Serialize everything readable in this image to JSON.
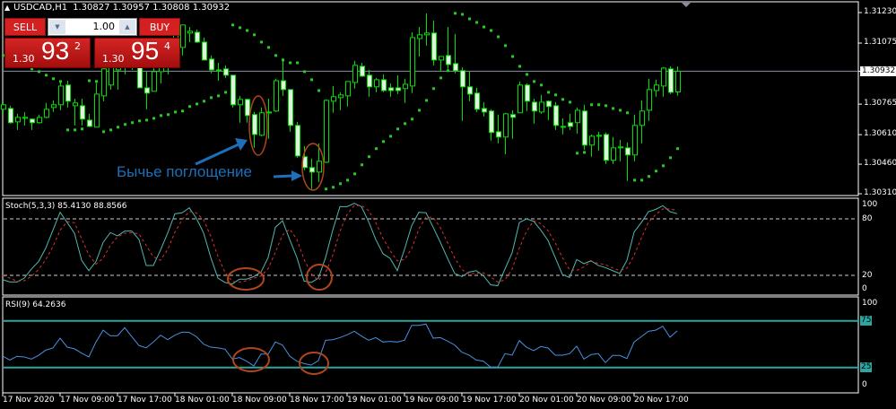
{
  "header": {
    "symbol": "USDCAD,H1",
    "ohlc": "1.30827 1.30957 1.30808 1.30932"
  },
  "trade_panel": {
    "sell_label": "SELL",
    "buy_label": "BUY",
    "lot": "1.00",
    "sell_price": {
      "prefix": "1.30",
      "big": "93",
      "sup": "2"
    },
    "buy_price": {
      "prefix": "1.30",
      "big": "95",
      "sup": "4"
    }
  },
  "annotation": {
    "text": "Бычье поглощение"
  },
  "colors": {
    "background": "#000000",
    "candle": "#00e000",
    "bear_body": "#d8f8d8",
    "sar": "#22cc22",
    "stoch_main": "#4fb8b0",
    "stoch_signal": "#e03030",
    "rsi": "#4a90e0",
    "rsi_levels": "#2fa5a0",
    "annotation": "#1c6fb8",
    "highlight": "#b0461c",
    "price_line": "#8890a0"
  },
  "chart_data": [
    {
      "type": "candlestick",
      "symbol": "USDCAD",
      "timeframe": "H1",
      "price_ticks": [
        "1.31230",
        "1.31075",
        "1.30932",
        "1.30765",
        "1.30610",
        "1.30460",
        "1.30310"
      ],
      "ylim": [
        1.3031,
        1.3123
      ],
      "current_price": "1.30932",
      "time_ticks": [
        "17 Nov 2020",
        "17 Nov 09:00",
        "17 Nov 17:00",
        "18 Nov 01:00",
        "18 Nov 09:00",
        "18 Nov 17:00",
        "19 Nov 01:00",
        "19 Nov 09:00",
        "19 Nov 17:00",
        "20 Nov 01:00",
        "20 Nov 09:00",
        "20 Nov 17:00"
      ],
      "bar_hours_start": "17 Nov 2020 00:00",
      "ohlc": [
        [
          1.30739,
          1.3078,
          1.30716,
          1.30762
        ],
        [
          1.30743,
          1.30757,
          1.30666,
          1.30671
        ],
        [
          1.30675,
          1.30716,
          1.30634,
          1.30698
        ],
        [
          1.30693,
          1.30725,
          1.30657,
          1.30698
        ],
        [
          1.30689,
          1.30693,
          1.30634,
          1.30671
        ],
        [
          1.30671,
          1.30712,
          1.30666,
          1.30698
        ],
        [
          1.30698,
          1.30771,
          1.30693,
          1.30739
        ],
        [
          1.30748,
          1.30784,
          1.30725,
          1.30762
        ],
        [
          1.30762,
          1.30884,
          1.30734,
          1.30857
        ],
        [
          1.30862,
          1.30884,
          1.30748,
          1.3078
        ],
        [
          1.30757,
          1.30793,
          1.30657,
          1.30771
        ],
        [
          1.30757,
          1.30793,
          1.30657,
          1.30689
        ],
        [
          1.30684,
          1.30716,
          1.30648,
          1.30652
        ],
        [
          1.30648,
          1.30871,
          1.30648,
          1.30816
        ],
        [
          1.30807,
          1.30975,
          1.3078,
          1.30944
        ],
        [
          1.30862,
          1.30998,
          1.30839,
          1.30953
        ],
        [
          1.30939,
          1.31044,
          1.30839,
          1.30994
        ],
        [
          1.30994,
          1.31044,
          1.30916,
          1.30975
        ],
        [
          1.30966,
          1.3103,
          1.30939,
          1.30985
        ],
        [
          1.31012,
          1.31044,
          1.30848,
          1.30848
        ],
        [
          1.30848,
          1.3093,
          1.30739,
          1.30821
        ],
        [
          1.3083,
          1.30966,
          1.3083,
          1.3093
        ],
        [
          1.3093,
          1.30998,
          1.30871,
          1.30953
        ],
        [
          1.30953,
          1.31066,
          1.30916,
          1.31021
        ],
        [
          1.31021,
          1.3118,
          1.30998,
          1.31157
        ],
        [
          1.31053,
          1.31167,
          1.31012,
          1.31167
        ],
        [
          1.31126,
          1.31157,
          1.3108,
          1.31135
        ],
        [
          1.3113,
          1.31144,
          1.31076,
          1.3108
        ],
        [
          1.3108,
          1.31103,
          1.30989,
          1.30989
        ],
        [
          1.30994,
          1.31012,
          1.30921,
          1.30939
        ],
        [
          1.30939,
          1.30975,
          1.30884,
          1.30935
        ],
        [
          1.30944,
          1.30962,
          1.30898,
          1.30912
        ],
        [
          1.30912,
          1.30912,
          1.30748,
          1.30762
        ],
        [
          1.30762,
          1.30807,
          1.30671,
          1.30789
        ],
        [
          1.30789,
          1.30793,
          1.30671,
          1.30707
        ],
        [
          1.30712,
          1.30725,
          1.30543,
          1.30611
        ],
        [
          1.30607,
          1.30748,
          1.30602,
          1.30721
        ],
        [
          1.30721,
          1.30793,
          1.30589,
          1.30725
        ],
        [
          1.3073,
          1.30894,
          1.30725,
          1.30884
        ],
        [
          1.30884,
          1.30998,
          1.30807,
          1.30839
        ],
        [
          1.30839,
          1.30839,
          1.30625,
          1.30657
        ],
        [
          1.30657,
          1.30675,
          1.30493,
          1.30502
        ],
        [
          1.30498,
          1.30552,
          1.30429,
          1.30443
        ],
        [
          1.30443,
          1.30489,
          1.30334,
          1.3042
        ],
        [
          1.3042,
          1.30566,
          1.3037,
          1.30475
        ],
        [
          1.3047,
          1.30789,
          1.30466,
          1.30784
        ],
        [
          1.3078,
          1.30857,
          1.30721,
          1.30803
        ],
        [
          1.30798,
          1.30825,
          1.30734,
          1.30812
        ],
        [
          1.30807,
          1.3088,
          1.30753,
          1.3088
        ],
        [
          1.30875,
          1.30985,
          1.30844,
          1.30962
        ],
        [
          1.30957,
          1.30975,
          1.30903,
          1.30907
        ],
        [
          1.30912,
          1.30939,
          1.30803,
          1.30853
        ],
        [
          1.30853,
          1.30898,
          1.30825,
          1.30889
        ],
        [
          1.30889,
          1.30916,
          1.30825,
          1.30834
        ],
        [
          1.30848,
          1.30871,
          1.30803,
          1.30834
        ],
        [
          1.30848,
          1.30912,
          1.30816,
          1.30834
        ],
        [
          1.30844,
          1.30894,
          1.30771,
          1.30866
        ],
        [
          1.30857,
          1.3113,
          1.30821,
          1.31103
        ],
        [
          1.31098,
          1.31157,
          1.31007,
          1.31117
        ],
        [
          1.31117,
          1.31226,
          1.31062,
          1.31126
        ],
        [
          1.31126,
          1.31189,
          1.30962,
          1.30989
        ],
        [
          1.30989,
          1.31007,
          1.3093,
          1.31007
        ],
        [
          1.31012,
          1.31157,
          1.30944,
          1.30966
        ],
        [
          1.30971,
          1.31121,
          1.30921,
          1.30935
        ],
        [
          1.30935,
          1.30953,
          1.3068,
          1.30853
        ],
        [
          1.30853,
          1.3093,
          1.3078,
          1.30816
        ],
        [
          1.30821,
          1.30848,
          1.30725,
          1.30739
        ],
        [
          1.30743,
          1.30775,
          1.30702,
          1.30725
        ],
        [
          1.3073,
          1.30739,
          1.3058,
          1.30621
        ],
        [
          1.30625,
          1.30712,
          1.30566,
          1.30598
        ],
        [
          1.30598,
          1.30721,
          1.30511,
          1.30716
        ],
        [
          1.30712,
          1.30734,
          1.30589,
          1.30698
        ],
        [
          1.30721,
          1.3088,
          1.30721,
          1.30862
        ],
        [
          1.30862,
          1.30871,
          1.3073,
          1.3078
        ],
        [
          1.30775,
          1.30793,
          1.30666,
          1.3073
        ],
        [
          1.30725,
          1.30812,
          1.30716,
          1.30775
        ],
        [
          1.3078,
          1.30784,
          1.30684,
          1.30753
        ],
        [
          1.30757,
          1.30775,
          1.30634,
          1.30657
        ],
        [
          1.30652,
          1.30693,
          1.30611,
          1.30648
        ],
        [
          1.30671,
          1.30716,
          1.30634,
          1.30652
        ],
        [
          1.30671,
          1.30748,
          1.30616,
          1.30734
        ],
        [
          1.3073,
          1.30762,
          1.30534,
          1.30557
        ],
        [
          1.30557,
          1.30611,
          1.30498,
          1.30602
        ],
        [
          1.30602,
          1.30625,
          1.3053,
          1.30607
        ],
        [
          1.30611,
          1.30621,
          1.30461,
          1.3048
        ],
        [
          1.3048,
          1.30598,
          1.30461,
          1.30543
        ],
        [
          1.30543,
          1.30584,
          1.30475,
          1.30548
        ],
        [
          1.30543,
          1.30571,
          1.30375,
          1.30507
        ],
        [
          1.30507,
          1.30712,
          1.30475,
          1.30657
        ],
        [
          1.30657,
          1.30784,
          1.30566,
          1.3073
        ],
        [
          1.30734,
          1.30894,
          1.3068,
          1.30839
        ],
        [
          1.30834,
          1.30889,
          1.30803,
          1.30862
        ],
        [
          1.30857,
          1.30953,
          1.30803,
          1.30948
        ],
        [
          1.30944,
          1.30957,
          1.30816,
          1.30825
        ],
        [
          1.30827,
          1.30957,
          1.30808,
          1.30932
        ]
      ],
      "parabolic_sar": [
        1.31012,
        1.30998,
        1.3098,
        1.30962,
        1.30944,
        1.3093,
        1.30912,
        1.30894,
        1.3088,
        1.30634,
        1.30634,
        1.30639,
        1.30884,
        1.3088,
        1.30625,
        1.30634,
        1.30648,
        1.30662,
        1.30671,
        1.3068,
        1.30684,
        1.30693,
        1.30707,
        1.30712,
        1.30725,
        1.3073,
        1.30753,
        1.30766,
        1.3078,
        1.30798,
        1.30807,
        1.30825,
        1.31167,
        1.31153,
        1.31139,
        1.31117,
        1.3108,
        1.31053,
        1.31012,
        1.30989,
        1.30975,
        1.30975,
        1.3093,
        1.30889,
        1.30834,
        1.30334,
        1.30343,
        1.30361,
        1.30379,
        1.30411,
        1.30457,
        1.30498,
        1.30539,
        1.30575,
        1.30602,
        1.30639,
        1.30666,
        1.30689,
        1.30734,
        1.30784,
        1.30844,
        1.30898,
        1.30935,
        1.31226,
        1.31221,
        1.31198,
        1.3118,
        1.31157,
        1.31139,
        1.31107,
        1.31062,
        1.31007,
        1.30957,
        1.30916,
        1.3088,
        1.30862,
        1.30825,
        1.30812,
        1.30789,
        1.30775,
        1.30516,
        1.3052,
        1.30762,
        1.30762,
        1.30757,
        1.30743,
        1.30734,
        1.30721,
        1.30379,
        1.30379,
        1.30398,
        1.30425,
        1.30452,
        1.30493,
        1.30539
      ]
    },
    {
      "type": "line",
      "label": "Stoch(5,3,3) 85.4130 88.8566",
      "levels": [
        20,
        80
      ],
      "ylim": [
        0,
        100
      ],
      "ticks": [
        "100",
        "80",
        "20",
        "0"
      ],
      "series": [
        {
          "role": "main",
          "values": [
            15.5,
            13,
            13,
            17,
            26.7,
            34.6,
            48.9,
            67.9,
            87,
            76,
            64.8,
            36,
            25,
            34.6,
            55,
            65.4,
            62,
            67,
            67,
            58,
            30.5,
            30.5,
            47,
            65,
            85.4,
            86.4,
            91.7,
            80.6,
            65,
            39,
            17,
            12.4,
            10.8,
            16,
            16,
            18.7,
            23.5,
            39,
            71,
            78,
            58,
            39,
            14,
            12.4,
            17,
            39,
            68,
            93,
            93,
            96.5,
            93,
            77,
            58,
            43,
            38,
            25,
            47.6,
            72.7,
            87,
            86.4,
            71,
            55,
            38,
            22,
            18.7,
            23.5,
            25,
            19.7,
            10,
            9,
            26.7,
            44,
            76,
            80,
            77.4,
            68,
            57,
            39,
            21,
            17.8,
            36.8,
            32.4,
            35.5,
            30.5,
            28.3,
            25,
            22,
            36,
            66,
            76,
            87.6,
            90,
            94,
            87.6,
            85.41
          ]
        },
        {
          "role": "signal",
          "values": [
            20,
            17,
            13.8,
            14.3,
            18.9,
            26.1,
            36.7,
            50.5,
            67.9,
            77,
            75.9,
            58.9,
            41.9,
            31.9,
            38.2,
            51.7,
            60.8,
            64.8,
            65.3,
            64,
            51.8,
            39.7,
            36,
            47.5,
            65.8,
            78.9,
            87.8,
            86.2,
            79.1,
            61.5,
            40.3,
            22.8,
            13.4,
            13.1,
            14.3,
            16.9,
            19.4,
            27.1,
            44.5,
            62.7,
            69,
            58.3,
            37,
            21.8,
            14.5,
            22.8,
            41.3,
            66.7,
            84.7,
            94.2,
            94.2,
            88.8,
            76,
            59.3,
            46.3,
            35.3,
            36.9,
            48.4,
            69.1,
            82,
            81.5,
            70.8,
            54.7,
            38.3,
            26.2,
            21.4,
            22.4,
            22.7,
            18.2,
            12.9,
            15.2,
            26.6,
            48.9,
            66.7,
            77.8,
            75.1,
            67.5,
            54.7,
            39,
            25.9,
            25.2,
            29,
            34.9,
            32.8,
            31.4,
            27.9,
            25.1,
            27.7,
            41.3,
            59.3,
            76.5,
            84.5,
            90.5,
            90.5,
            88.86
          ]
        }
      ]
    },
    {
      "type": "line",
      "label": "RSI(9) 64.2636",
      "levels": [
        25,
        75
      ],
      "level_labels": [
        "75",
        "25"
      ],
      "ylim": [
        0,
        100
      ],
      "ticks": [
        "100",
        "0"
      ],
      "series": [
        {
          "values": [
            37.2,
            33,
            37,
            36.3,
            34,
            38,
            43.6,
            45.9,
            56.4,
            46.8,
            45,
            40.4,
            36.3,
            52.3,
            65,
            59,
            59,
            67.7,
            58,
            48.5,
            46,
            52.3,
            59.6,
            54.8,
            59.6,
            62.9,
            62.6,
            58,
            50,
            46.8,
            46,
            44.6,
            34,
            35.6,
            31.7,
            26.6,
            39.4,
            39.4,
            52.3,
            49,
            37.2,
            31.7,
            29.2,
            27.6,
            32.4,
            54.2,
            54.8,
            57,
            60,
            63.8,
            58.7,
            54.2,
            57,
            52.3,
            52.9,
            52.3,
            54.2,
            70.2,
            70.2,
            71.5,
            56.4,
            57,
            53.3,
            49,
            41.3,
            38.2,
            33,
            31.7,
            25.4,
            25.4,
            39.8,
            38.2,
            53.8,
            46.8,
            43,
            47.5,
            45.9,
            38.2,
            38.2,
            39.8,
            47.8,
            34,
            38.8,
            39.8,
            30.2,
            37.9,
            37.9,
            34.6,
            52.3,
            58,
            63.8,
            65,
            69.2,
            57.4,
            64.26
          ]
        }
      ]
    }
  ]
}
